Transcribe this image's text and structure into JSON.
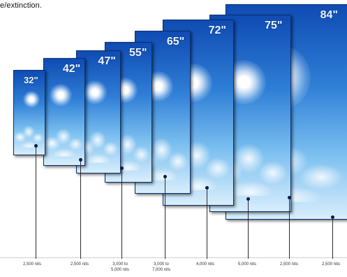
{
  "caption": "e/extinction.",
  "screens": [
    {
      "size": "32\"",
      "brightness": "2,500 nits"
    },
    {
      "size": "42\"",
      "brightness": "2,500 nits"
    },
    {
      "size": "47\"",
      "brightness": "3,000 to\n5,000 nits"
    },
    {
      "size": "55\"",
      "brightness": "3,000 to\n7,000 nits"
    },
    {
      "size": "65\"",
      "brightness": "4,000 nits"
    },
    {
      "size": "72\"",
      "brightness": "5,000 nits"
    },
    {
      "size": "75\"",
      "brightness": "2,500 nits"
    },
    {
      "size": "84\"",
      "brightness": "2,500 nits"
    }
  ],
  "colors": {
    "sky_top": "#0f4bb3",
    "sky_bottom": "#d8eefc",
    "line": "#2a2a2a"
  }
}
